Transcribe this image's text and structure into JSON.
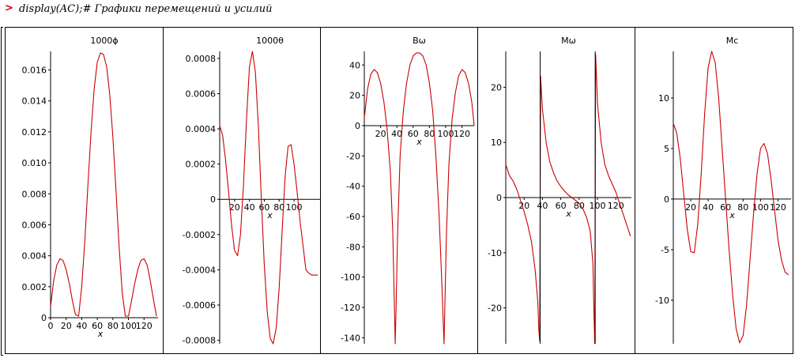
{
  "prompt": {
    "symbol": ">",
    "command": "display(AC);# Графики перемещений и усилий"
  },
  "colors": {
    "curve": "#cc0000",
    "axis": "#000000",
    "prompt": "#d4000b"
  },
  "chart_data": [
    {
      "type": "line",
      "title": "1000ϕ",
      "xlabel": "x",
      "ylabel": "",
      "xlim": [
        0,
        138
      ],
      "ylim": [
        0,
        0.0172
      ],
      "xticks": [
        0,
        20,
        40,
        60,
        80,
        100,
        120
      ],
      "yticks": [
        0,
        0.002,
        0.004,
        0.006,
        0.008,
        0.01,
        0.012,
        0.014,
        0.016
      ],
      "ytick_labels": [
        "0",
        "0.002",
        "0.004",
        "0.006",
        "0.008",
        "0.010",
        "0.012",
        "0.014",
        "0.016"
      ],
      "series": [
        {
          "kind": "dual_hump",
          "x": [
            0,
            4,
            8,
            12,
            16,
            20,
            24,
            28,
            32,
            36,
            40,
            44,
            48,
            52,
            56,
            60,
            64,
            68,
            72,
            76,
            80,
            84,
            88,
            92,
            96,
            100,
            104,
            108,
            112,
            116,
            120,
            124,
            128,
            132,
            136
          ],
          "y": [
            0.0007,
            0.0024,
            0.0034,
            0.0038,
            0.0037,
            0.0031,
            0.0022,
            0.0011,
            0.0002,
            0.0001,
            0.002,
            0.005,
            0.0086,
            0.012,
            0.0148,
            0.0165,
            0.0171,
            0.017,
            0.0162,
            0.0144,
            0.0117,
            0.0082,
            0.0046,
            0.0016,
            0.0001,
            0.0001,
            0.0011,
            0.0022,
            0.0031,
            0.0037,
            0.0038,
            0.0034,
            0.0024,
            0.0012,
            0.0001
          ]
        }
      ]
    },
    {
      "type": "line",
      "title": "1000θ",
      "xlabel": "x",
      "ylabel": "",
      "xlim": [
        0,
        135
      ],
      "ylim": [
        -0.00082,
        0.00084
      ],
      "xticks": [
        20,
        40,
        60,
        80,
        100
      ],
      "yticks": [
        -0.0008,
        -0.0006,
        -0.0004,
        -0.0002,
        0,
        0.0002,
        0.0004,
        0.0006,
        0.0008
      ],
      "ytick_labels": [
        "-0.0008",
        "-0.0006",
        "-0.0004",
        "-0.0002",
        "0",
        "0.0002",
        "0.0004",
        "0.0006",
        "0.0008"
      ],
      "series": [
        {
          "kind": "wave",
          "x": [
            0,
            4,
            8,
            12,
            16,
            20,
            24,
            28,
            32,
            36,
            40,
            44,
            48,
            52,
            56,
            60,
            64,
            68,
            72,
            76,
            80,
            84,
            88,
            92,
            96,
            100,
            104,
            108,
            112,
            116,
            120,
            124,
            128,
            132
          ],
          "y": [
            0.00042,
            0.00036,
            0.00022,
            4e-05,
            -0.00015,
            -0.00029,
            -0.00032,
            -0.0002,
            8e-05,
            0.00045,
            0.00075,
            0.00084,
            0.00072,
            0.00042,
            0.0,
            -0.00037,
            -0.00064,
            -0.00079,
            -0.00082,
            -0.00073,
            -0.0005,
            -0.00018,
            0.00013,
            0.0003,
            0.00031,
            0.0002,
            5e-05,
            -0.00012,
            -0.00026,
            -0.0004,
            -0.00042,
            -0.00043,
            -0.00043,
            -0.00043
          ]
        }
      ]
    },
    {
      "type": "line",
      "title": "Bω",
      "xlabel": "x",
      "ylabel": "",
      "xlim": [
        0,
        135
      ],
      "ylim": [
        -144,
        49
      ],
      "xticks": [
        20,
        40,
        60,
        80,
        100,
        120
      ],
      "yticks": [
        -140,
        -120,
        -100,
        -80,
        -60,
        -40,
        -20,
        0,
        20,
        40
      ],
      "ytick_labels": [
        "-140",
        "-120",
        "-100",
        "-80",
        "-60",
        "-40",
        "-20",
        "0",
        "20",
        "40"
      ],
      "series": [
        {
          "kind": "arches",
          "x": [
            0,
            4,
            8,
            12,
            16,
            20,
            24,
            28,
            32,
            35,
            37,
            38,
            39,
            41,
            44,
            48,
            52,
            56,
            60,
            64,
            68,
            72,
            76,
            80,
            84,
            88,
            92,
            95,
            97,
            98,
            99,
            101,
            104,
            108,
            112,
            116,
            120,
            124,
            128,
            132,
            135
          ],
          "y": [
            5,
            24,
            34,
            37,
            35,
            28,
            16,
            -2,
            -30,
            -70,
            -120,
            -144,
            -120,
            -70,
            -20,
            10,
            28,
            40,
            46,
            48,
            48,
            46,
            40,
            28,
            10,
            -20,
            -60,
            -100,
            -130,
            -144,
            -120,
            -70,
            -25,
            5,
            22,
            33,
            37,
            35,
            28,
            16,
            0
          ]
        }
      ]
    },
    {
      "type": "line",
      "title": "Mω",
      "xlabel": "x",
      "ylabel": "",
      "xlim": [
        0,
        137
      ],
      "ylim": [
        -26.5,
        26.5
      ],
      "xticks": [
        20,
        40,
        60,
        80,
        100,
        120
      ],
      "yticks": [
        -20,
        -10,
        0,
        10,
        20
      ],
      "ytick_labels": [
        "-20",
        "-10",
        "0",
        "10",
        "20"
      ],
      "series": [
        {
          "kind": "poles",
          "x": [
            0,
            4,
            8,
            12,
            16,
            20,
            24,
            28,
            32,
            35,
            36,
            37,
            38,
            40,
            44,
            48,
            52,
            56,
            60,
            64,
            68,
            72,
            76,
            80,
            84,
            88,
            92,
            95,
            96,
            97,
            98,
            100,
            104,
            108,
            112,
            116,
            120,
            124,
            128,
            132,
            136
          ],
          "y": [
            6,
            4,
            3,
            1.5,
            -0.5,
            -2.5,
            -5,
            -8,
            -13,
            -19,
            -24,
            -26,
            22,
            16,
            10,
            6.5,
            4.5,
            3,
            2,
            1.2,
            0.5,
            0,
            -0.5,
            -1,
            -2,
            -3.5,
            -6,
            -12,
            -20,
            -26.5,
            26,
            17,
            10,
            6,
            4,
            2.5,
            1,
            -1,
            -3,
            -5,
            -7
          ]
        }
      ]
    },
    {
      "type": "line",
      "title": "Mc",
      "xlabel": "x",
      "ylabel": "",
      "xlim": [
        0,
        135
      ],
      "ylim": [
        -14.3,
        14.6
      ],
      "xticks": [
        20,
        40,
        60,
        80,
        100,
        120
      ],
      "yticks": [
        -10,
        -5,
        0,
        5,
        10
      ],
      "ytick_labels": [
        "-10",
        "-5",
        "0",
        "5",
        "10"
      ],
      "series": [
        {
          "kind": "wave",
          "x": [
            0,
            4,
            8,
            12,
            16,
            20,
            24,
            28,
            32,
            36,
            40,
            44,
            48,
            52,
            56,
            60,
            64,
            68,
            72,
            76,
            80,
            84,
            88,
            92,
            96,
            100,
            104,
            108,
            112,
            116,
            120,
            124,
            128,
            132
          ],
          "y": [
            7.5,
            6.5,
            4,
            0.5,
            -3,
            -5.2,
            -5.3,
            -2.5,
            2.5,
            8.5,
            13,
            14.6,
            13.5,
            10,
            5,
            0,
            -5,
            -9.5,
            -12.8,
            -14.2,
            -13.5,
            -10.5,
            -6,
            -1.5,
            2.5,
            5,
            5.5,
            4.5,
            2,
            -1,
            -4,
            -6,
            -7.2,
            -7.5
          ]
        }
      ]
    }
  ]
}
